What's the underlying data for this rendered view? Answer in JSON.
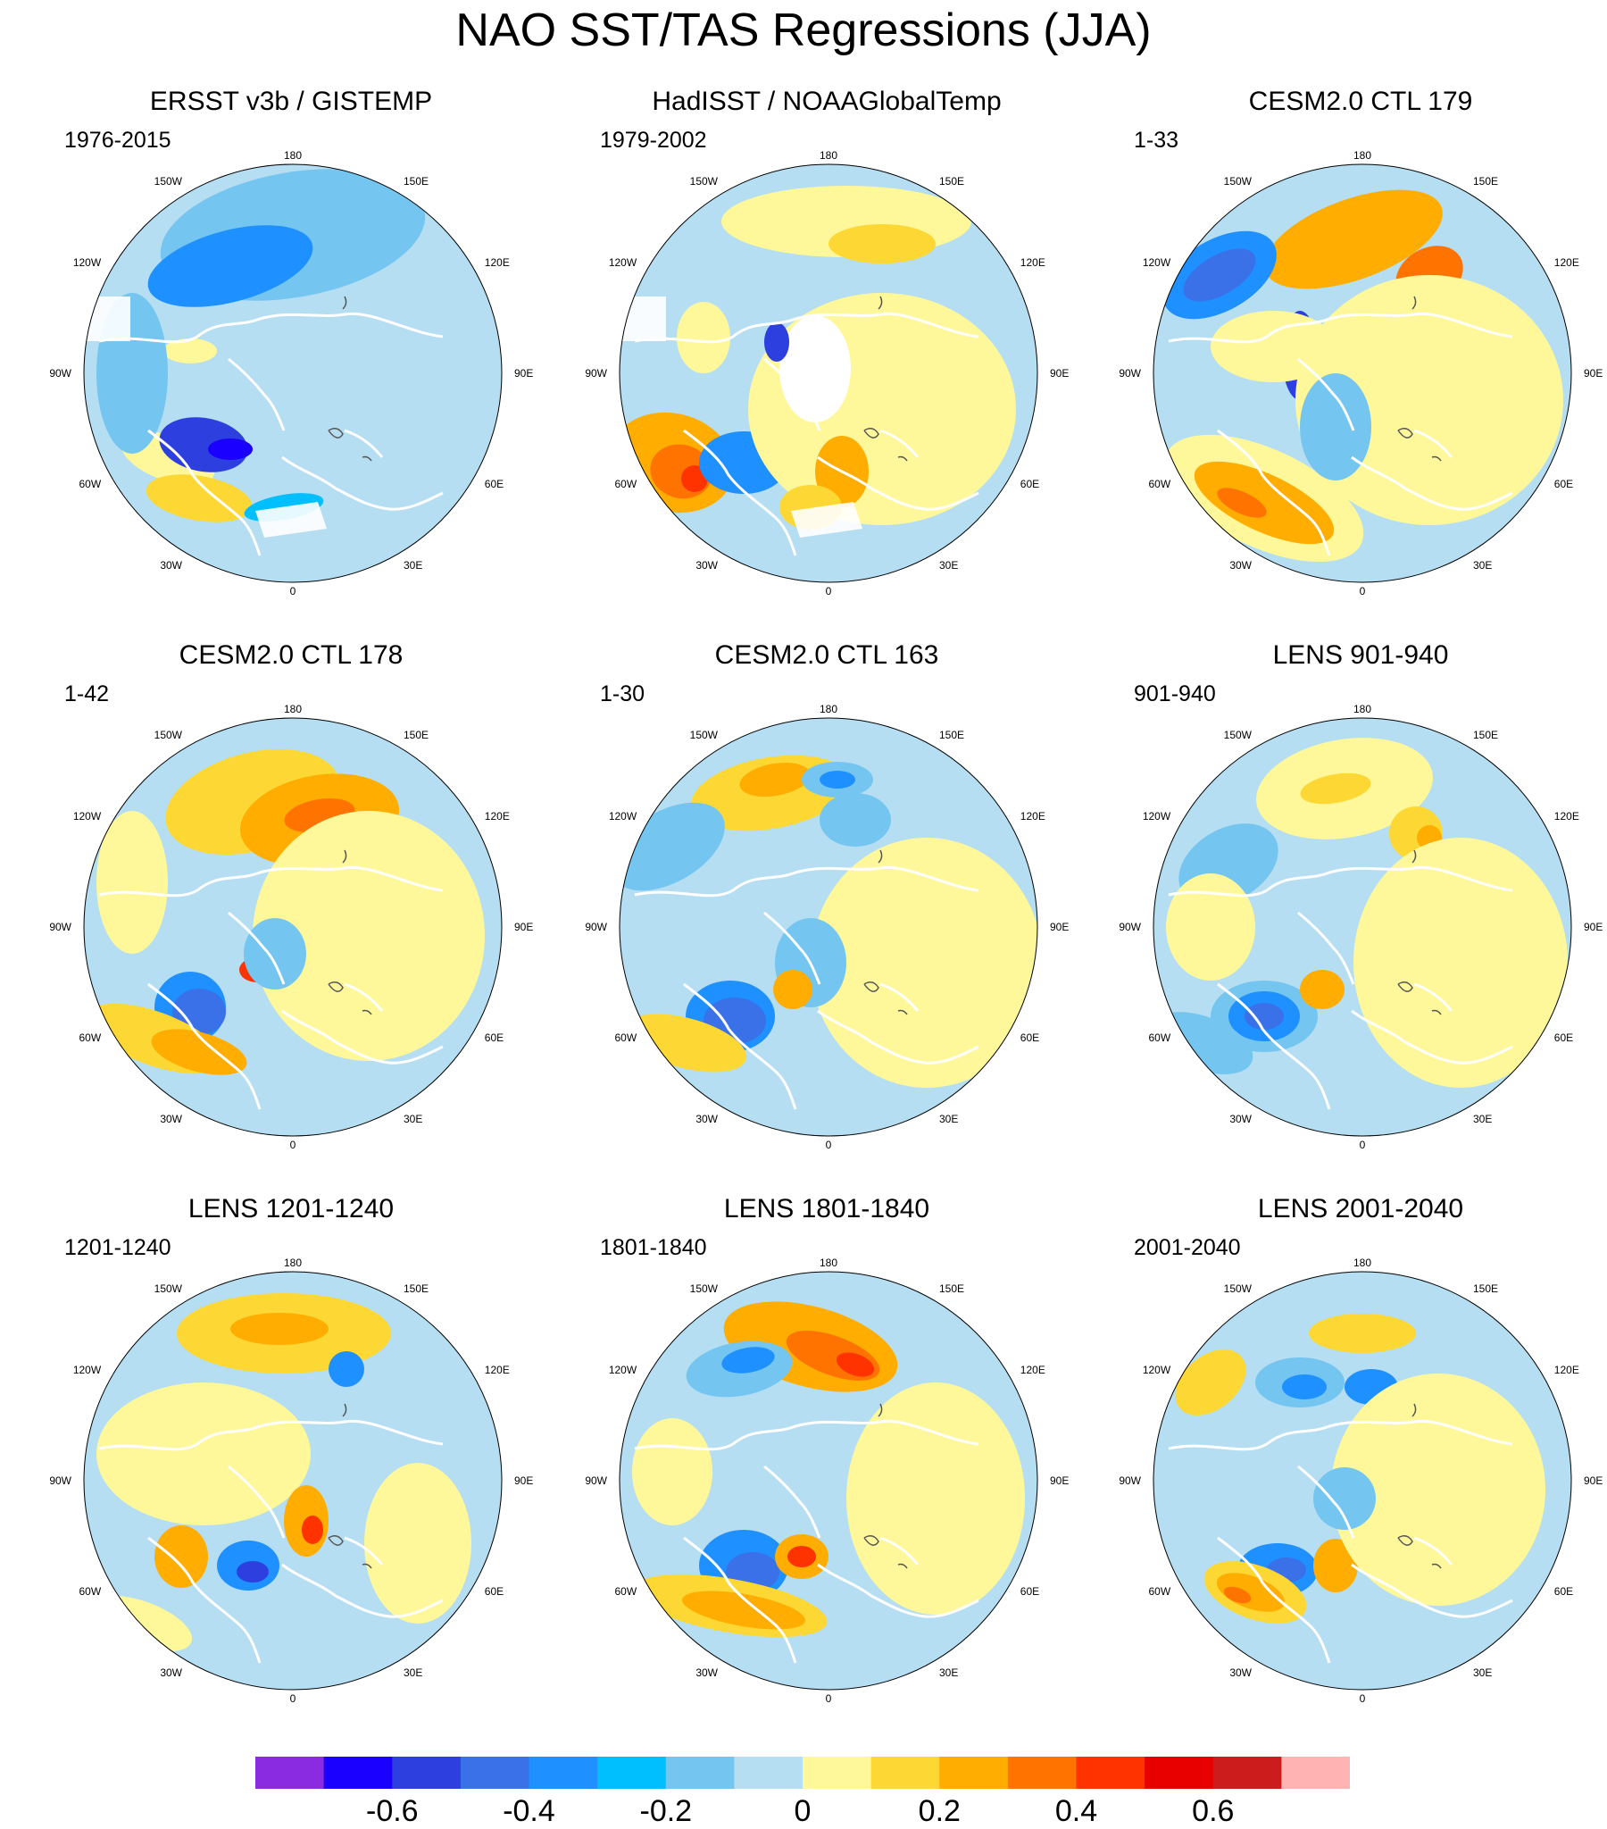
{
  "title": "NAO SST/TAS Regressions (JJA)",
  "panels": [
    {
      "title": "ERSST v3b / GISTEMP",
      "period": "1976-2015"
    },
    {
      "title": "HadISST / NOAAGlobalTemp",
      "period": "1979-2002"
    },
    {
      "title": "CESM2.0 CTL 179",
      "period": "1-33"
    },
    {
      "title": "CESM2.0 CTL 178",
      "period": "1-42"
    },
    {
      "title": "CESM2.0 CTL 163",
      "period": "1-30"
    },
    {
      "title": "LENS 901-940",
      "period": "901-940"
    },
    {
      "title": "LENS 1201-1240",
      "period": "1201-1240"
    },
    {
      "title": "LENS 1801-1840",
      "period": "1801-1840"
    },
    {
      "title": "LENS 2001-2040",
      "period": "2001-2040"
    }
  ],
  "longitude_labels": [
    "180",
    "150E",
    "120E",
    "90E",
    "60E",
    "30E",
    "0",
    "30W",
    "60W",
    "90W",
    "120W",
    "150W"
  ],
  "colors": {
    "palette": [
      "#8a2be2",
      "#1a00ff",
      "#2e3fe0",
      "#3a70e8",
      "#1e90ff",
      "#00bfff",
      "#74c5f0",
      "#b5def2",
      "#fff89a",
      "#fdd835",
      "#ffad00",
      "#ff7400",
      "#ff3300",
      "#e80000",
      "#cc1c1c",
      "#ffb3b3"
    ],
    "land_outline": "#ffffff",
    "lake_outline": "#555555"
  },
  "colorbar": {
    "ticks": [
      {
        "value": -0.6,
        "label": "-0.6"
      },
      {
        "value": -0.4,
        "label": "-0.4"
      },
      {
        "value": -0.2,
        "label": "-0.2"
      },
      {
        "value": 0,
        "label": "0"
      },
      {
        "value": 0.2,
        "label": "0.2"
      },
      {
        "value": 0.4,
        "label": "0.4"
      },
      {
        "value": 0.6,
        "label": "0.6"
      }
    ]
  }
}
